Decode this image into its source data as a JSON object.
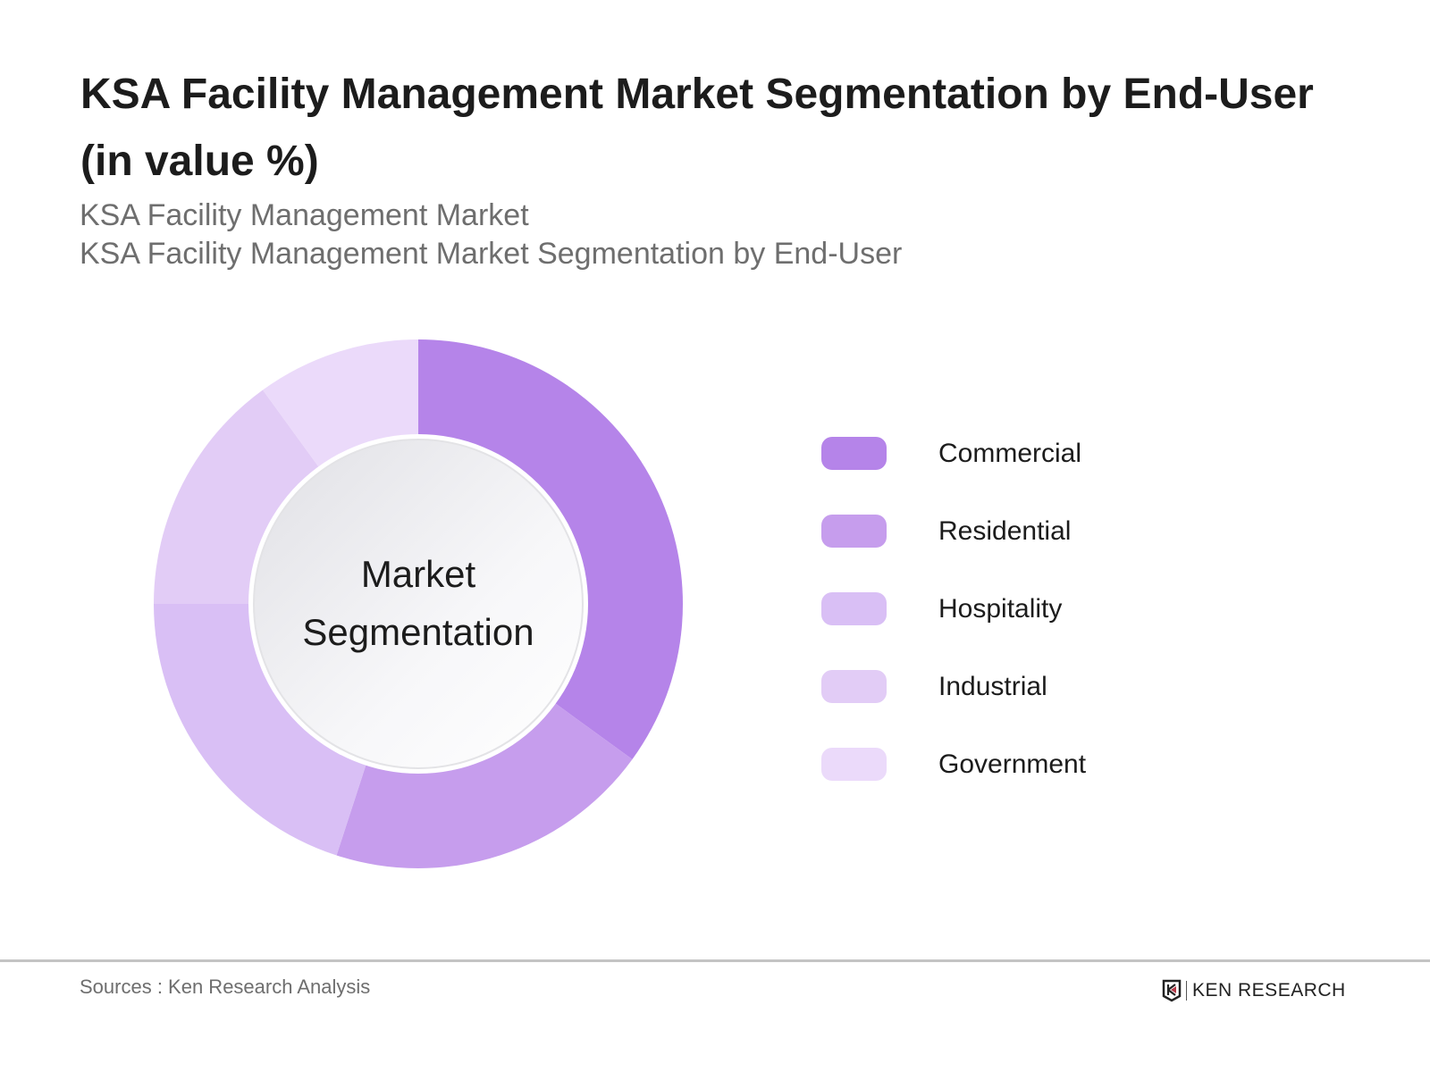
{
  "header": {
    "title": "KSA Facility Management Market Segmentation by End-User (in value %)",
    "subtitle1": "KSA Facility Management Market",
    "subtitle2": "KSA Facility Management Market Segmentation by End-User"
  },
  "chart_data": {
    "type": "pie",
    "variant": "donut",
    "center_label": [
      "Market",
      "Segmentation"
    ],
    "legend_placement": "right",
    "categories": [
      "Commercial",
      "Residential",
      "Hospitality",
      "Industrial",
      "Government"
    ],
    "values": [
      35,
      20,
      20,
      15,
      10
    ],
    "colors": [
      "#b584e9",
      "#c69ded",
      "#d9bff5",
      "#e2ccf6",
      "#ebdafa"
    ]
  },
  "footer": {
    "source": "Sources : Ken Research Analysis",
    "logo_text": "KEN RESEARCH"
  }
}
